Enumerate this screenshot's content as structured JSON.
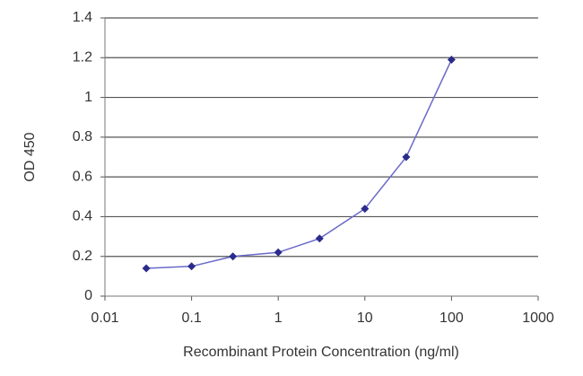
{
  "chart_data": {
    "type": "line",
    "x_label": "Recombinant Protein Concentration (ng/ml)",
    "y_label": "OD 450",
    "x": [
      0.03,
      0.1,
      0.3,
      1,
      3,
      10,
      30,
      100
    ],
    "values": [
      0.14,
      0.15,
      0.2,
      0.22,
      0.29,
      0.44,
      0.7,
      1.19
    ],
    "color": "#2b2b8c",
    "line_color": "#6a6ac8",
    "xscale": "log",
    "xlim": [
      0.01,
      1000
    ],
    "xticks": [
      0.01,
      0.1,
      1,
      10,
      100,
      1000
    ],
    "ylim": [
      0,
      1.4
    ],
    "yticks": [
      0,
      0.2,
      0.4,
      0.6,
      0.8,
      1,
      1.2,
      1.4
    ],
    "grid": true
  }
}
